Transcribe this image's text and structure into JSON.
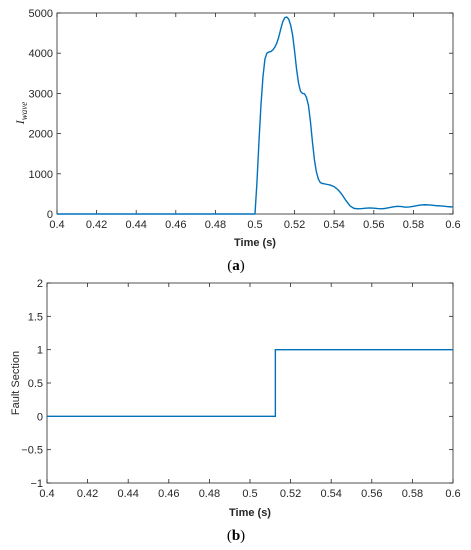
{
  "accent": "#0072BD",
  "chart_data": [
    {
      "type": "line",
      "caption_open": "(",
      "caption_letter": "a",
      "caption_close": ")",
      "xlabel": "Time (s)",
      "ylabel_main": "I",
      "ylabel_sub": "wave",
      "xlim": [
        0.4,
        0.6
      ],
      "ylim": [
        0,
        5000
      ],
      "xticks": [
        "0.4",
        "0.42",
        "0.44",
        "0.46",
        "0.48",
        "0.5",
        "0.52",
        "0.54",
        "0.56",
        "0.58",
        "0.6"
      ],
      "yticks": [
        "0",
        "1000",
        "2000",
        "3000",
        "4000",
        "5000"
      ],
      "series": [
        {
          "x": [
            0.4,
            0.46,
            0.4995,
            0.5,
            0.501,
            0.502,
            0.503,
            0.504,
            0.505,
            0.506,
            0.507,
            0.508,
            0.509,
            0.51,
            0.511,
            0.512,
            0.513,
            0.514,
            0.515,
            0.516,
            0.517,
            0.518,
            0.519,
            0.52,
            0.521,
            0.522,
            0.523,
            0.524,
            0.525,
            0.526,
            0.527,
            0.528,
            0.529,
            0.53,
            0.531,
            0.532,
            0.533,
            0.534,
            0.535,
            0.536,
            0.538,
            0.54,
            0.542,
            0.544,
            0.546,
            0.548,
            0.55,
            0.552,
            0.554,
            0.556,
            0.558,
            0.56,
            0.562,
            0.564,
            0.566,
            0.568,
            0.57,
            0.572,
            0.574,
            0.576,
            0.578,
            0.58,
            0.582,
            0.584,
            0.586,
            0.588,
            0.59,
            0.592,
            0.594,
            0.596,
            0.598,
            0.6
          ],
          "y": [
            0,
            0,
            0,
            0,
            800,
            1800,
            2700,
            3400,
            3850,
            4000,
            4030,
            4040,
            4080,
            4150,
            4250,
            4400,
            4600,
            4780,
            4880,
            4900,
            4850,
            4700,
            4450,
            4050,
            3600,
            3250,
            3050,
            3000,
            2990,
            2900,
            2700,
            2300,
            1800,
            1350,
            1050,
            870,
            780,
            760,
            750,
            740,
            720,
            680,
            600,
            480,
            330,
            200,
            140,
            130,
            135,
            145,
            150,
            145,
            135,
            130,
            140,
            160,
            180,
            190,
            185,
            170,
            175,
            190,
            210,
            225,
            230,
            225,
            215,
            205,
            200,
            190,
            180,
            175
          ]
        }
      ]
    },
    {
      "type": "line",
      "caption_open": "(",
      "caption_letter": "b",
      "caption_close": ")",
      "xlabel": "Time (s)",
      "ylabel": "Fault Section",
      "xlim": [
        0.4,
        0.6
      ],
      "ylim": [
        -1,
        2
      ],
      "xticks": [
        "0.4",
        "0.42",
        "0.44",
        "0.46",
        "0.48",
        "0.5",
        "0.52",
        "0.54",
        "0.56",
        "0.58",
        "0.6"
      ],
      "yticks": [
        "-1",
        "-0.5",
        "0",
        "0.5",
        "1",
        "1.5",
        "2"
      ],
      "series": [
        {
          "x": [
            0.4,
            0.5125,
            0.5125,
            0.6
          ],
          "y": [
            0,
            0,
            1,
            1
          ]
        }
      ]
    }
  ]
}
